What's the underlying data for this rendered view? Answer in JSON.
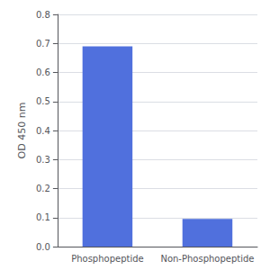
{
  "chart_data": {
    "type": "bar",
    "categories": [
      "Phosphopeptide",
      "Non-Phosphopeptide"
    ],
    "values": [
      0.69,
      0.095
    ],
    "ylabel": "OD 450 nm",
    "ylim": [
      0,
      0.8
    ],
    "yticks": [
      {
        "value": 0,
        "label": "0.0"
      },
      0.1,
      0.2,
      0.3,
      0.4,
      0.5,
      0.6,
      0.7,
      0.8
    ],
    "grid": true
  }
}
